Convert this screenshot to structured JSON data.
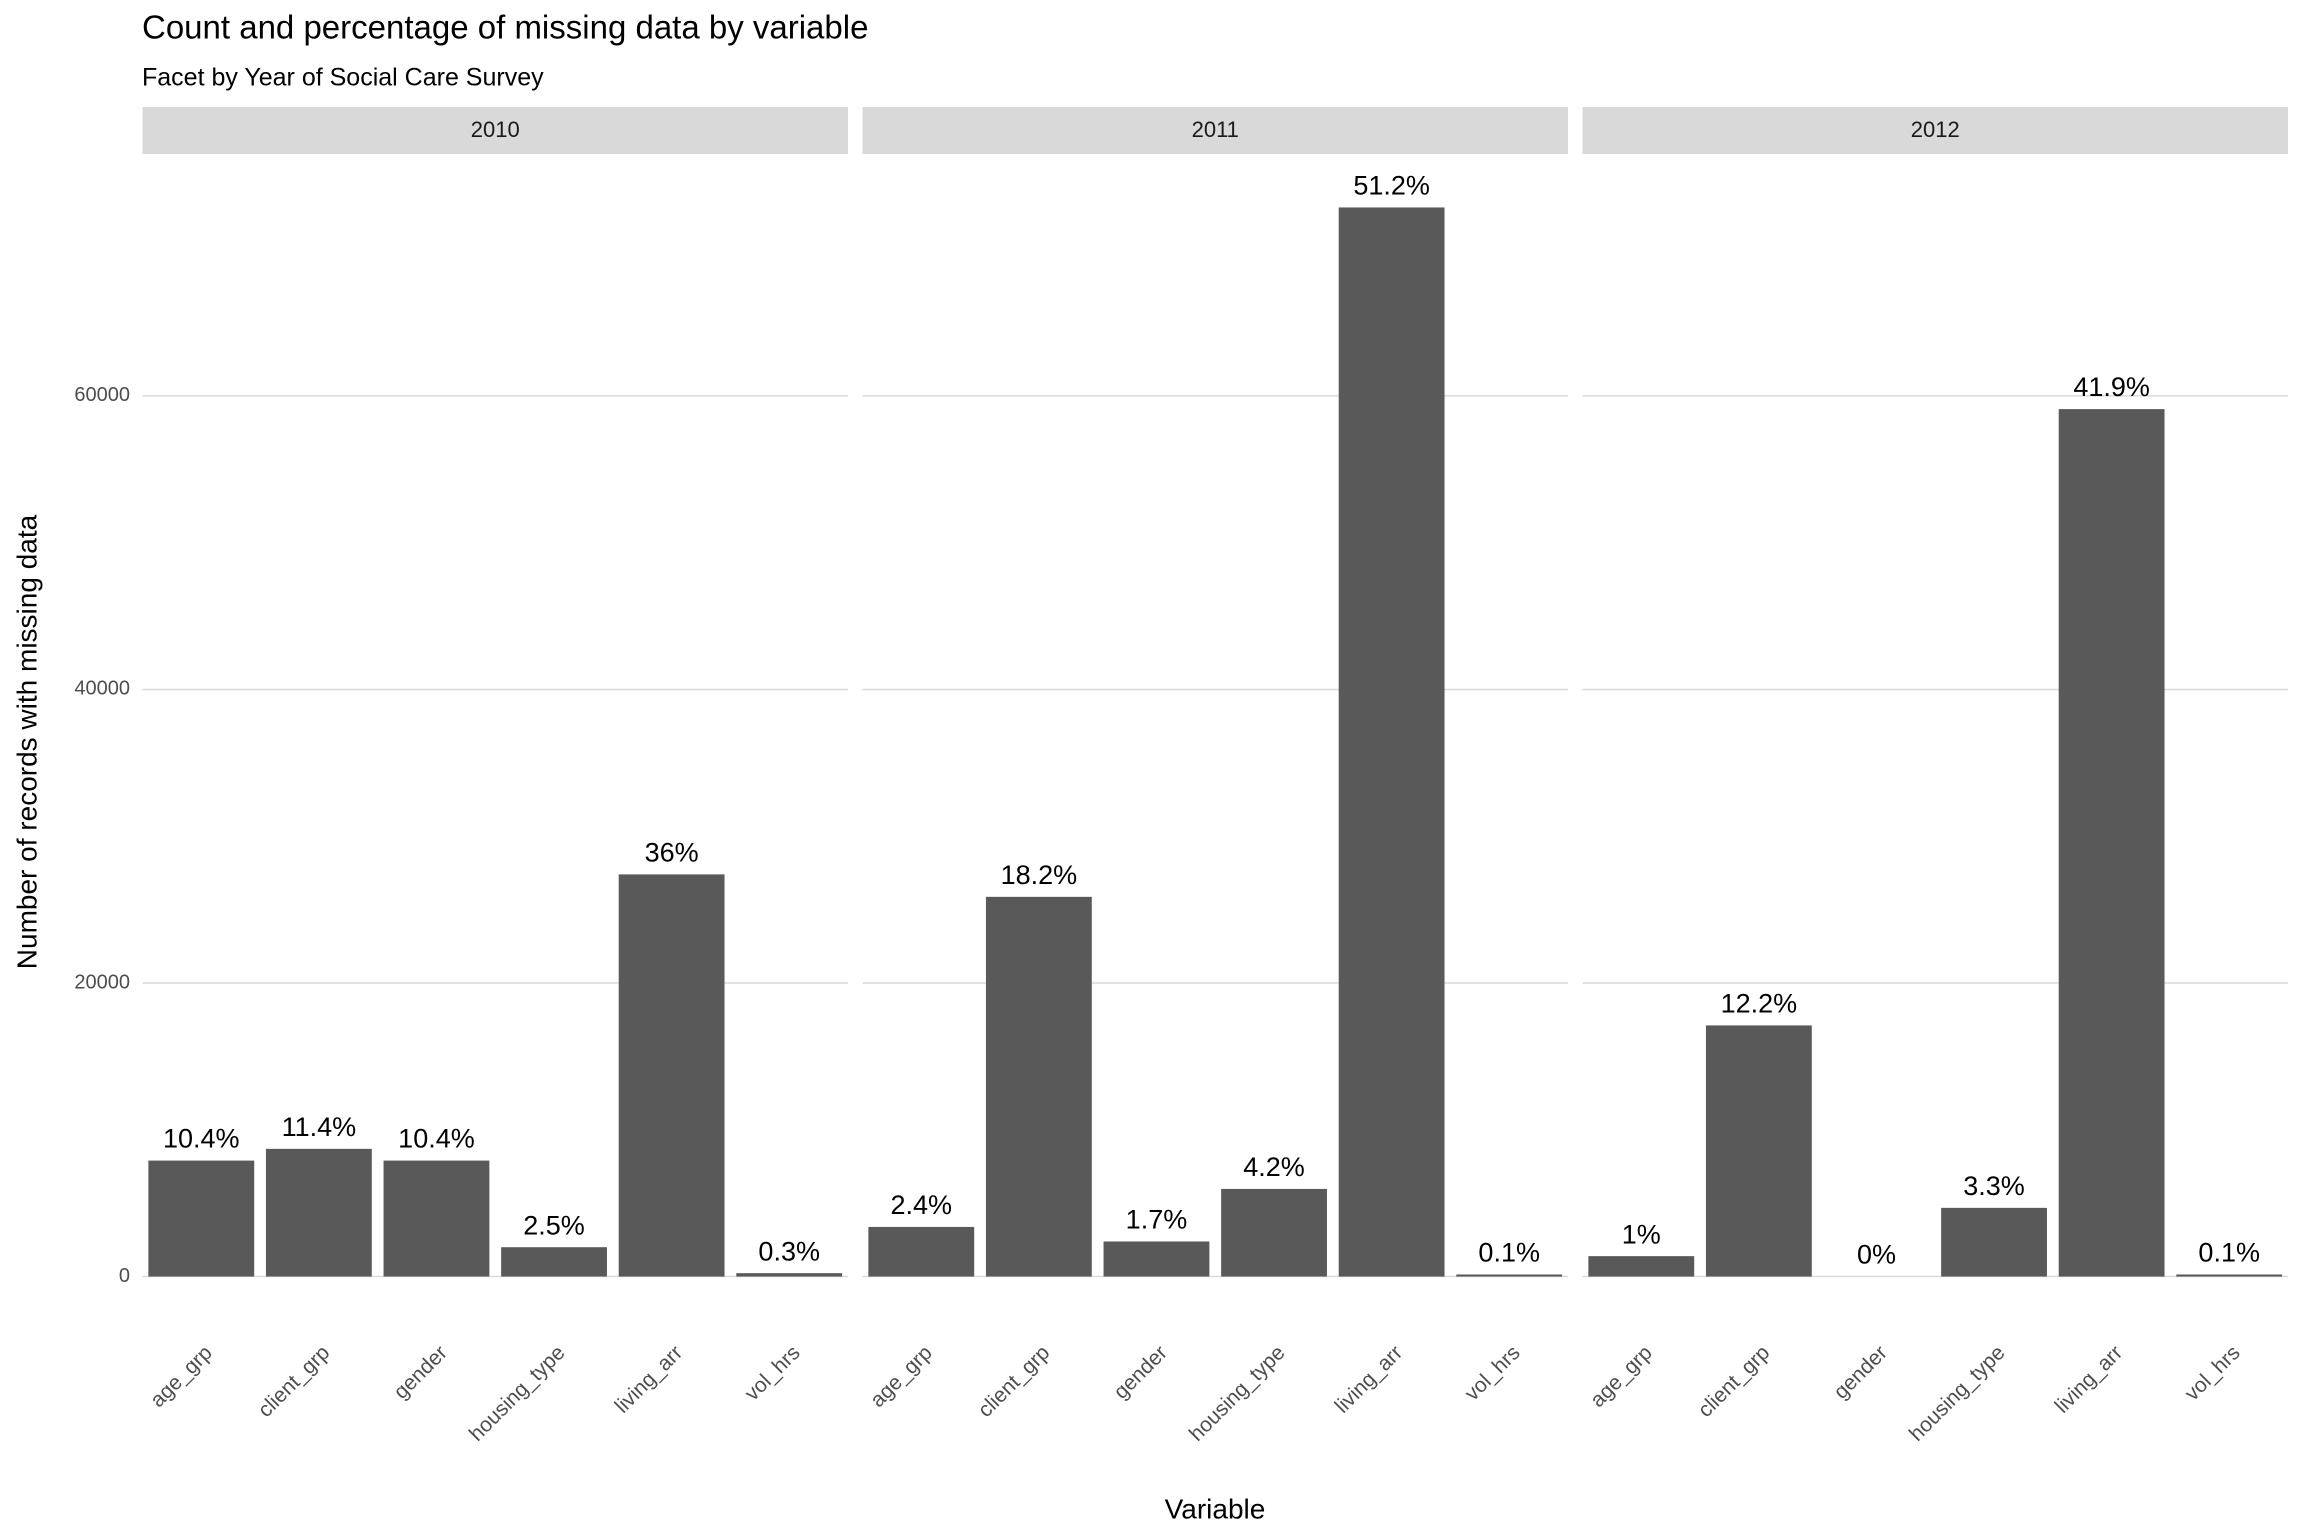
{
  "chart_data": {
    "type": "bar",
    "title": "Count and percentage of missing data by variable",
    "subtitle": "Facet by Year of Social Care Survey",
    "x_label": "Variable",
    "y_label": "Number of records with missing data",
    "color": "#595959",
    "grid": true,
    "ylim": [
      -3642,
      76482
    ],
    "yticks": [
      0,
      20000,
      40000,
      60000
    ],
    "facets": [
      {
        "label": "2010",
        "categories": [
          "age_grp",
          "client_grp",
          "gender",
          "housing_type",
          "living_arr",
          "vol_hrs"
        ],
        "values": [
          7900,
          8700,
          7900,
          2000,
          27400,
          230
        ],
        "labels": [
          "10.4%",
          "11.4%",
          "10.4%",
          "2.5%",
          "36%",
          "0.3%"
        ]
      },
      {
        "label": "2011",
        "categories": [
          "age_grp",
          "client_grp",
          "gender",
          "housing_type",
          "living_arr",
          "vol_hrs"
        ],
        "values": [
          3380,
          25870,
          2390,
          5970,
          72840,
          140
        ],
        "labels": [
          "2.4%",
          "18.2%",
          "1.7%",
          "4.2%",
          "51.2%",
          "0.1%"
        ]
      },
      {
        "label": "2012",
        "categories": [
          "age_grp",
          "client_grp",
          "gender",
          "housing_type",
          "living_arr",
          "vol_hrs"
        ],
        "values": [
          1390,
          17110,
          0,
          4680,
          59100,
          140
        ],
        "labels": [
          "1%",
          "12.2%",
          "0%",
          "3.3%",
          "41.9%",
          "0.1%"
        ]
      }
    ]
  }
}
